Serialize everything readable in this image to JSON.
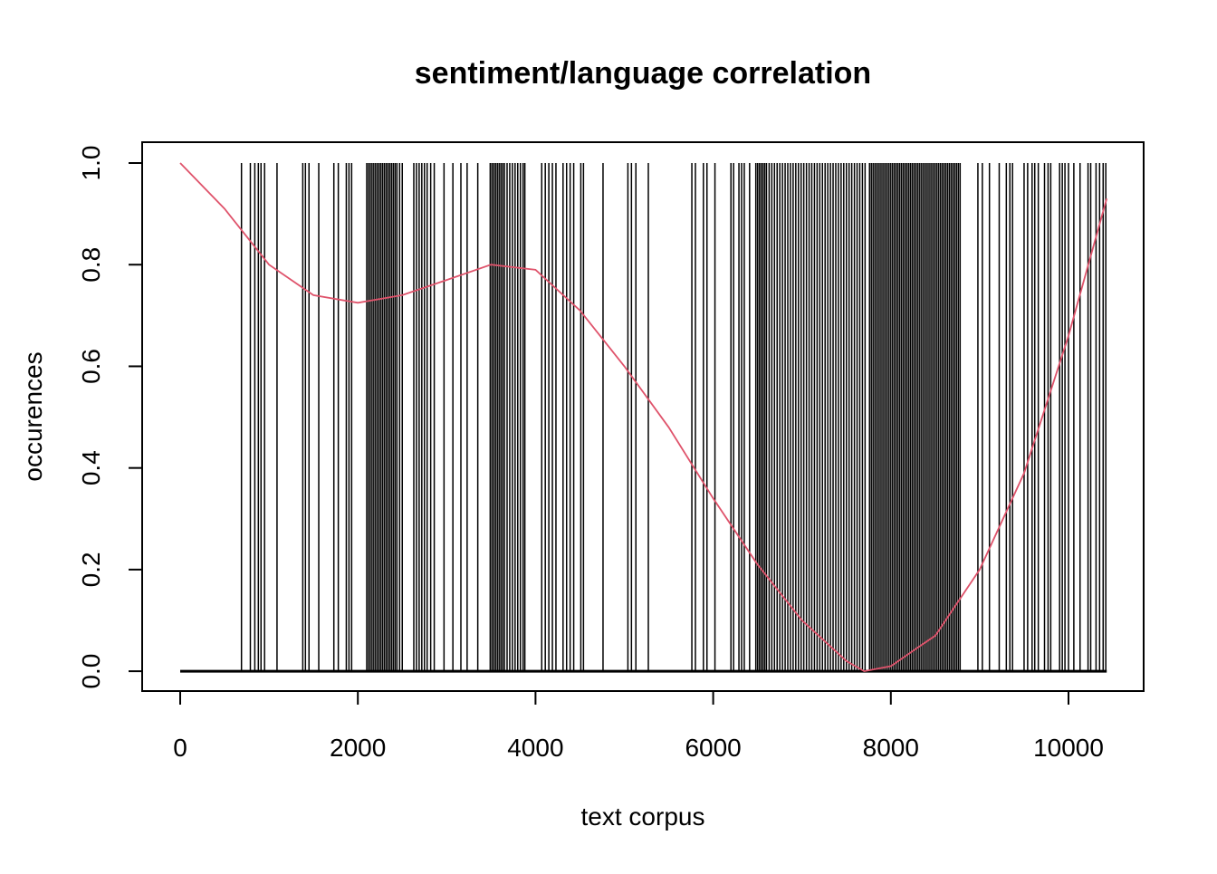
{
  "chart_data": {
    "type": "line",
    "title": "sentiment/language correlation",
    "x_label": "text corpus",
    "y_label": "occurences",
    "xlim": [
      -428,
      10846
    ],
    "ylim": [
      -0.039,
      1.041
    ],
    "xticks": [
      0,
      2000,
      4000,
      6000,
      8000,
      10000
    ],
    "yticks": [
      {
        "value": 0,
        "label": "0.0"
      },
      {
        "value": 0.2,
        "label": "0.2"
      },
      {
        "value": 0.4,
        "label": "0.4"
      },
      {
        "value": 0.6,
        "label": "0.6"
      },
      {
        "value": 0.8,
        "label": "0.8"
      },
      {
        "value": 1,
        "label": "1.0"
      }
    ],
    "series": [
      {
        "style": "line",
        "color": "#000000",
        "x": [
          0,
          10430
        ],
        "values": [
          0,
          0
        ]
      },
      {
        "style": "h",
        "color": "#000000",
        "x": [
          690,
          790,
          840,
          880,
          910,
          950,
          1090,
          1380,
          1410,
          1450,
          1560,
          1730,
          1780,
          1870,
          1900,
          1930,
          2100,
          2120,
          2140,
          2160,
          2180,
          2200,
          2220,
          2240,
          2260,
          2280,
          2300,
          2320,
          2340,
          2360,
          2380,
          2400,
          2420,
          2440,
          2470,
          2500,
          2630,
          2660,
          2690,
          2720,
          2750,
          2780,
          2820,
          2860,
          2970,
          3070,
          3160,
          3230,
          3350,
          3490,
          3510,
          3530,
          3550,
          3570,
          3590,
          3610,
          3630,
          3650,
          3680,
          3710,
          3740,
          3770,
          3800,
          3830,
          3860,
          3880,
          4070,
          4110,
          4150,
          4190,
          4230,
          4310,
          4350,
          4390,
          4430,
          4510,
          4540,
          4760,
          5040,
          5080,
          5130,
          5270,
          5760,
          5800,
          5890,
          5930,
          6020,
          6200,
          6230,
          6290,
          6320,
          6350,
          6410,
          6480,
          6500,
          6520,
          6540,
          6560,
          6580,
          6600,
          6630,
          6660,
          6690,
          6720,
          6750,
          6780,
          6810,
          6840,
          6870,
          6900,
          6930,
          6960,
          6990,
          7020,
          7050,
          7080,
          7110,
          7140,
          7170,
          7200,
          7230,
          7260,
          7290,
          7320,
          7350,
          7380,
          7410,
          7440,
          7470,
          7500,
          7530,
          7560,
          7590,
          7620,
          7650,
          7680,
          7710,
          7760,
          7780,
          7800,
          7820,
          7840,
          7860,
          7880,
          7900,
          7920,
          7940,
          7960,
          7980,
          8000,
          8020,
          8040,
          8060,
          8080,
          8100,
          8120,
          8140,
          8160,
          8180,
          8200,
          8220,
          8240,
          8260,
          8280,
          8300,
          8320,
          8340,
          8360,
          8380,
          8400,
          8420,
          8440,
          8460,
          8480,
          8500,
          8520,
          8540,
          8560,
          8580,
          8600,
          8620,
          8640,
          8660,
          8680,
          8700,
          8720,
          8740,
          8760,
          8780,
          8980,
          9030,
          9110,
          9220,
          9300,
          9340,
          9370,
          9500,
          9540,
          9590,
          9620,
          9660,
          9730,
          9770,
          9800,
          9900,
          9930,
          9960,
          10000,
          10060,
          10130,
          10220,
          10250,
          10310,
          10350,
          10390,
          10420
        ],
        "values": [
          1,
          1,
          1,
          1,
          1,
          1,
          1,
          1,
          1,
          1,
          1,
          1,
          1,
          1,
          1,
          1,
          1,
          1,
          1,
          1,
          1,
          1,
          1,
          1,
          1,
          1,
          1,
          1,
          1,
          1,
          1,
          1,
          1,
          1,
          1,
          1,
          1,
          1,
          1,
          1,
          1,
          1,
          1,
          1,
          1,
          1,
          1,
          1,
          1,
          1,
          1,
          1,
          1,
          1,
          1,
          1,
          1,
          1,
          1,
          1,
          1,
          1,
          1,
          1,
          1,
          1,
          1,
          1,
          1,
          1,
          1,
          1,
          1,
          1,
          1,
          1,
          1,
          1,
          1,
          1,
          1,
          1,
          1,
          1,
          1,
          1,
          1,
          1,
          1,
          1,
          1,
          1,
          1,
          1,
          1,
          1,
          1,
          1,
          1,
          1,
          1,
          1,
          1,
          1,
          1,
          1,
          1,
          1,
          1,
          1,
          1,
          1,
          1,
          1,
          1,
          1,
          1,
          1,
          1,
          1,
          1,
          1,
          1,
          1,
          1,
          1,
          1,
          1,
          1,
          1,
          1,
          1,
          1,
          1,
          1,
          1,
          1,
          1,
          1,
          1,
          1,
          1,
          1,
          1,
          1,
          1,
          1,
          1,
          1,
          1,
          1,
          1,
          1,
          1,
          1,
          1,
          1,
          1,
          1,
          1,
          1,
          1,
          1,
          1,
          1,
          1,
          1,
          1,
          1,
          1,
          1,
          1,
          1,
          1,
          1,
          1,
          1,
          1,
          1,
          1,
          1,
          1,
          1,
          1,
          1,
          1,
          1,
          1,
          1,
          1,
          1,
          1,
          1,
          1,
          1,
          1,
          1,
          1,
          1,
          1,
          1,
          1,
          1,
          1,
          1,
          1,
          1,
          1,
          1,
          1,
          1,
          1,
          1,
          1,
          1,
          1
        ]
      },
      {
        "style": "line",
        "color": "#df536b",
        "x": [
          0,
          500,
          1000,
          1500,
          2000,
          2500,
          3000,
          3500,
          4000,
          4500,
          5000,
          5500,
          6000,
          6500,
          7000,
          7500,
          7700,
          8000,
          8500,
          9000,
          9500,
          10000,
          10430
        ],
        "values": [
          1.0,
          0.91,
          0.8,
          0.74,
          0.725,
          0.74,
          0.77,
          0.8,
          0.79,
          0.71,
          0.6,
          0.48,
          0.34,
          0.21,
          0.1,
          0.02,
          0.0,
          0.01,
          0.07,
          0.2,
          0.39,
          0.66,
          0.93
        ]
      }
    ]
  }
}
